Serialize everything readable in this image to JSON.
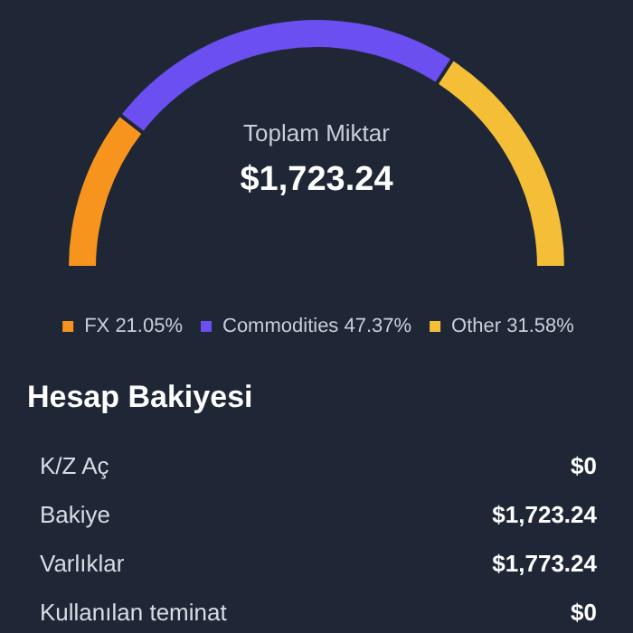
{
  "chart_data": [
    {
      "type": "donut",
      "title": "Toplam Miktar",
      "subtitle": "$1,723.24",
      "categories": [
        "FX",
        "Commodities",
        "Other"
      ],
      "values": [
        21.05,
        47.37,
        31.58
      ],
      "value_labels": [
        "21.05%",
        "47.37%",
        "31.58%"
      ],
      "colors": [
        "#f7941d",
        "#6b4ff0",
        "#f4bf37"
      ],
      "legend": "bottom"
    },
    {
      "type": "other",
      "title": "Hesap Bakiyesi",
      "categories": [
        "K/Z Aç",
        "Bakiye",
        "Varlıklar",
        "Kullanılan teminat"
      ],
      "value_labels": [
        "$0",
        "$1,723.24",
        "$1,773.24",
        "$0"
      ]
    }
  ]
}
